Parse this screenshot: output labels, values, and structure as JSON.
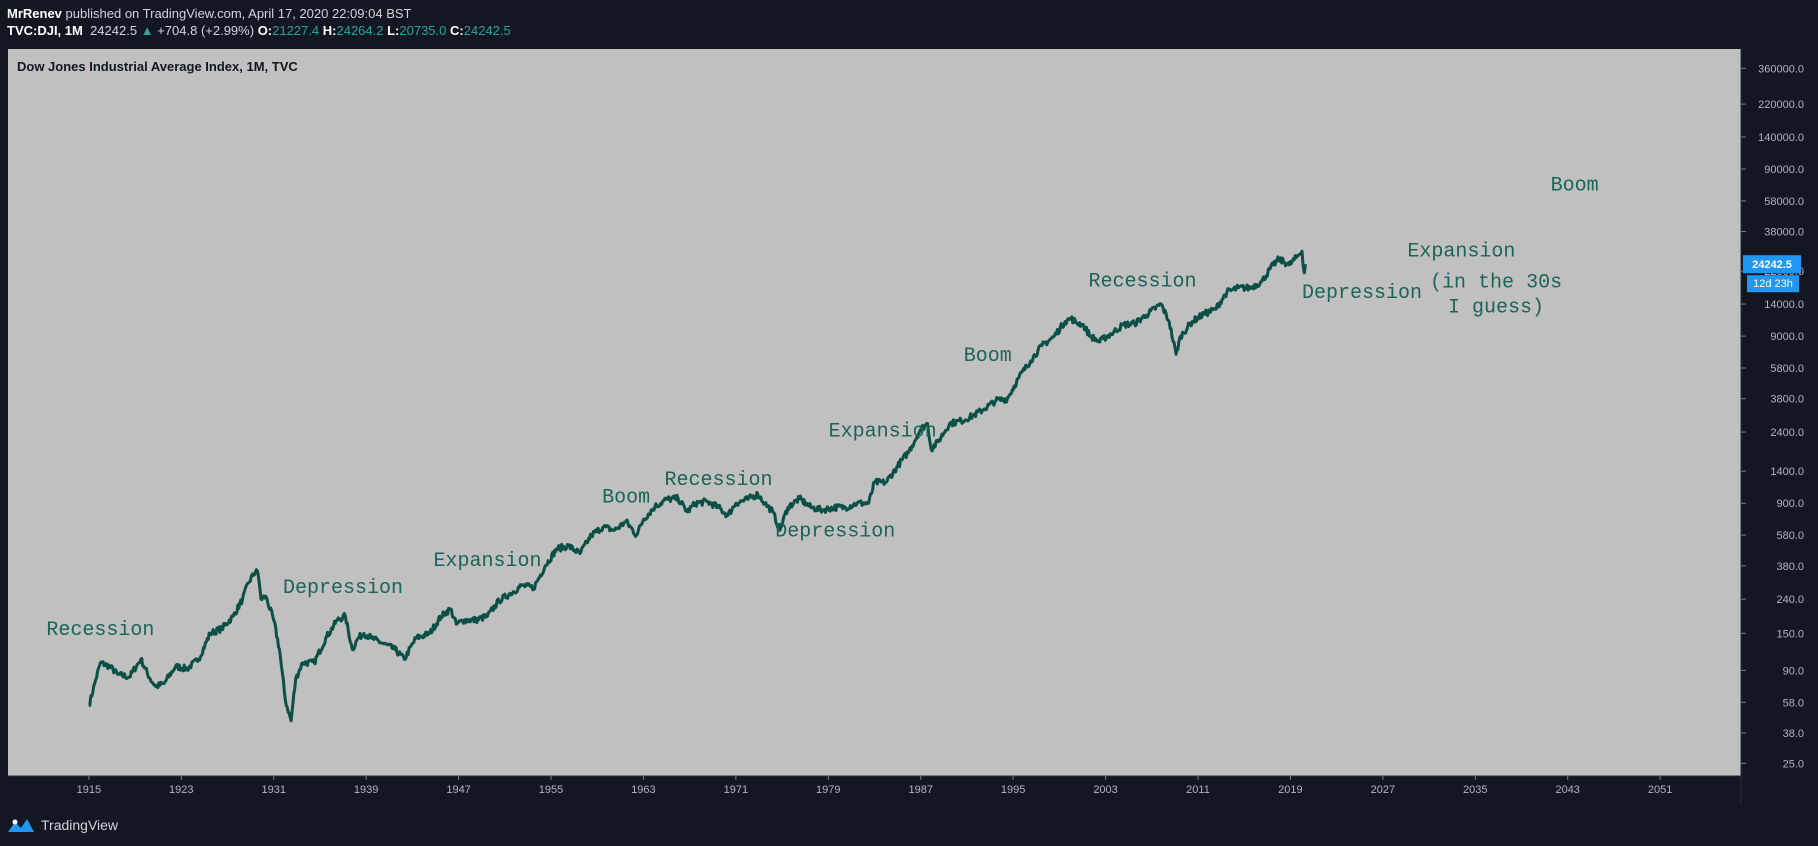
{
  "header": {
    "author": "MrRenev",
    "published_text": "published on TradingView.com, April 17, 2020 22:09:04 BST",
    "symbol": "TVC:DJI, 1M",
    "last": "24242.5",
    "change": "+704.8 (+2.99%)",
    "o_label": "O:",
    "o_value": "21227.4",
    "h_label": "H:",
    "h_value": "24264.2",
    "l_label": "L:",
    "l_value": "20735.0",
    "c_label": "C:",
    "c_value": "24242.5"
  },
  "footer": {
    "brand": "TradingView"
  },
  "colors": {
    "background": "#131722",
    "plot": "#c0c0c0",
    "line": "#0b4f45",
    "annotation": "#1b6457",
    "price_tag": "#2196f3",
    "up": "#26a69a"
  },
  "chart_data": {
    "type": "line",
    "title": "Dow Jones Industrial Average Index, 1M, TVC",
    "y_scale": "log",
    "ylim": [
      21,
      470000
    ],
    "xlim": [
      1908,
      2058
    ],
    "x_ticks": [
      1915,
      1923,
      1931,
      1939,
      1947,
      1955,
      1963,
      1971,
      1979,
      1987,
      1995,
      2003,
      2011,
      2019,
      2027,
      2035,
      2043,
      2051
    ],
    "y_ticks": [
      25,
      38,
      58,
      90,
      150,
      240,
      380,
      580,
      900,
      1400,
      2400,
      3800,
      5800,
      9000,
      14000,
      22000,
      38000,
      58000,
      90000,
      140000,
      220000,
      360000
    ],
    "y_tick_labels": [
      "25.0",
      "38.0",
      "58.0",
      "90.0",
      "150.0",
      "240.0",
      "380.0",
      "580.0",
      "900.0",
      "1400.0",
      "2400.0",
      "3800.0",
      "5800.0",
      "9000.0",
      "14000.0",
      "22000.0",
      "38000.0",
      "58000.0",
      "90000.0",
      "140000.0",
      "220000.0",
      "360000.0"
    ],
    "last_price_label": "24242.5",
    "countdown_label": "12d 23h",
    "series": [
      {
        "x": [
          1915.0,
          1915.5,
          1916.0,
          1916.8,
          1917.5,
          1918.5,
          1919.5,
          1920.3,
          1920.8,
          1921.5,
          1922.5,
          1923.5,
          1924.5,
          1925.5,
          1926.5,
          1927.5,
          1928.3,
          1928.8,
          1929.5,
          1929.7,
          1929.9,
          1930.3,
          1931.0,
          1931.5,
          1932.0,
          1932.5,
          1932.9,
          1933.5,
          1934.5,
          1935.5,
          1936.5,
          1937.2,
          1937.8,
          1938.3,
          1938.8,
          1939.5,
          1940.5,
          1941.5,
          1942.3,
          1943.3,
          1944.5,
          1945.5,
          1946.3,
          1946.8,
          1947.5,
          1948.5,
          1949.5,
          1950.5,
          1951.5,
          1952.5,
          1953.5,
          1954.5,
          1955.5,
          1956.5,
          1957.5,
          1958.5,
          1959.5,
          1960.5,
          1961.5,
          1962.4,
          1963.0,
          1964.0,
          1965.0,
          1966.0,
          1966.8,
          1967.5,
          1968.5,
          1969.5,
          1970.3,
          1971.0,
          1972.0,
          1972.9,
          1973.5,
          1974.2,
          1974.8,
          1975.5,
          1976.5,
          1977.5,
          1978.5,
          1979.5,
          1980.5,
          1981.5,
          1982.5,
          1983.0,
          1984.0,
          1985.0,
          1986.0,
          1987.0,
          1987.6,
          1987.9,
          1988.5,
          1989.5,
          1990.5,
          1991.5,
          1992.5,
          1993.5,
          1994.5,
          1995.5,
          1996.5,
          1997.5,
          1998.5,
          1999.5,
          2000.0,
          2000.5,
          2001.0,
          2001.7,
          2002.5,
          2002.8,
          2003.5,
          2004.5,
          2005.5,
          2006.5,
          2007.8,
          2008.5,
          2009.1,
          2009.5,
          2010.5,
          2011.5,
          2012.5,
          2013.5,
          2014.5,
          2015.5,
          2016.5,
          2017.5,
          2018.0,
          2018.9,
          2019.5,
          2020.0,
          2020.2,
          2020.3
        ],
        "values": [
          55,
          75,
          100,
          95,
          85,
          82,
          105,
          80,
          72,
          75,
          95,
          92,
          105,
          150,
          160,
          190,
          240,
          300,
          360,
          320,
          240,
          250,
          180,
          120,
          60,
          45,
          80,
          100,
          100,
          140,
          180,
          190,
          120,
          140,
          150,
          140,
          130,
          120,
          105,
          140,
          150,
          190,
          210,
          170,
          180,
          180,
          190,
          235,
          260,
          290,
          280,
          380,
          480,
          500,
          450,
          580,
          650,
          620,
          700,
          580,
          720,
          860,
          950,
          960,
          800,
          900,
          920,
          850,
          760,
          900,
          950,
          1020,
          900,
          800,
          620,
          850,
          960,
          850,
          820,
          850,
          850,
          900,
          900,
          1200,
          1200,
          1500,
          1850,
          2500,
          2700,
          1900,
          2100,
          2700,
          2800,
          3000,
          3300,
          3700,
          3800,
          5100,
          6400,
          7900,
          8900,
          11000,
          11500,
          10800,
          10600,
          9000,
          8300,
          8700,
          9300,
          10500,
          10700,
          12000,
          14000,
          11000,
          7000,
          9000,
          11000,
          12200,
          13000,
          16500,
          17500,
          17500,
          19000,
          24000,
          26000,
          24000,
          26500,
          29000,
          21500,
          24242.5
        ],
        "color": "#0b4f45"
      }
    ],
    "annotations": [
      {
        "text": "Recession",
        "x": 1916.0,
        "y": 147
      },
      {
        "text": "Depression",
        "x": 1937.0,
        "y": 262
      },
      {
        "text": "Expansion",
        "x": 1949.5,
        "y": 380
      },
      {
        "text": "Boom",
        "x": 1961.5,
        "y": 910
      },
      {
        "text": "Recession",
        "x": 1969.5,
        "y": 1160
      },
      {
        "text": "Depression",
        "x": 1979.6,
        "y": 570
      },
      {
        "text": "Expansion",
        "x": 1983.7,
        "y": 2250
      },
      {
        "text": "Boom",
        "x": 1992.8,
        "y": 6400
      },
      {
        "text": "Recession",
        "x": 2006.2,
        "y": 17800
      },
      {
        "text": "Depression",
        "x": 2025.2,
        "y": 15200
      },
      {
        "text": "Expansion",
        "x": 2033.8,
        "y": 27000
      },
      {
        "text": "(in the 30s",
        "x": 2036.8,
        "y": 17600
      },
      {
        "text": "I guess)",
        "x": 2036.8,
        "y": 12500
      },
      {
        "text": "Boom",
        "x": 2043.6,
        "y": 67000
      }
    ]
  }
}
